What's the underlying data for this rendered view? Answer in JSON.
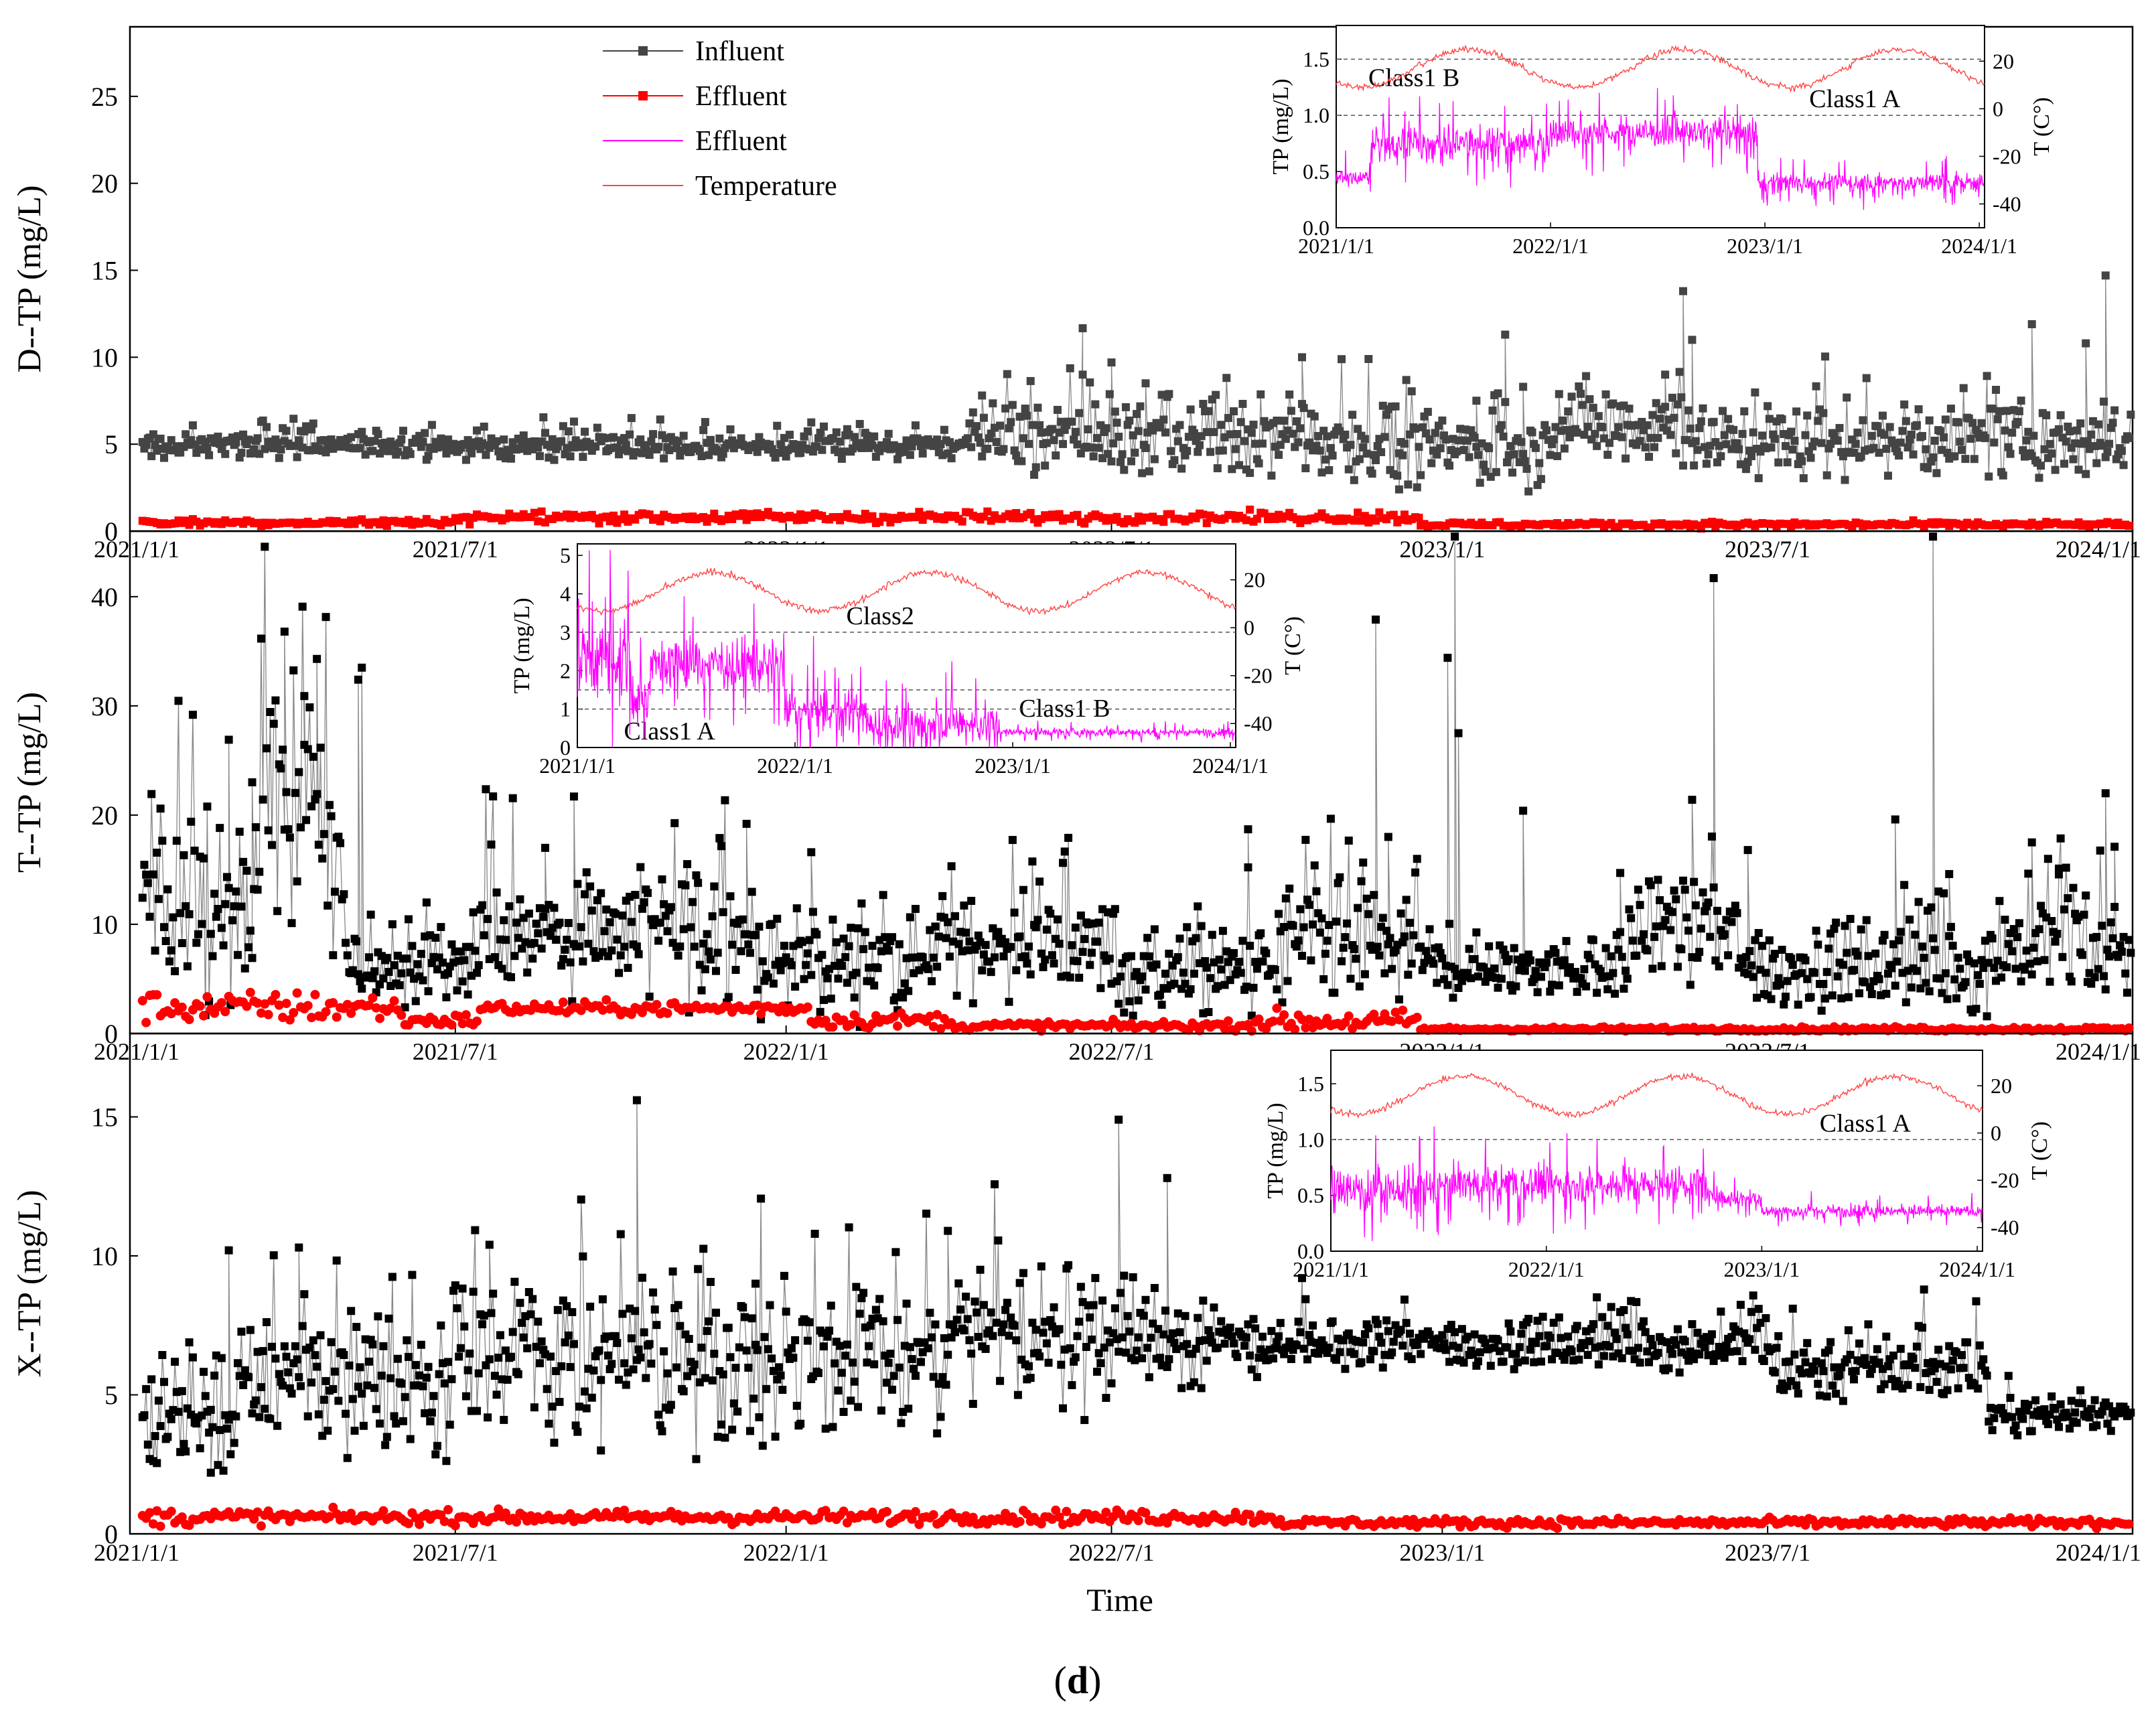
{
  "figure_label_open": "(",
  "figure_label": "d",
  "figure_label_close": ")",
  "colors": {
    "influent": "#444444",
    "influent_black": "#000000",
    "effluent": "#ff0000",
    "inset_tp": "#ff00ff",
    "temperature": "#ff4444",
    "dash": "#555555"
  },
  "chart_data": [
    {
      "id": "D",
      "type": "scatter",
      "title": "",
      "ylabel": "D--TP (mg/L)",
      "xlabel": "",
      "ylim": [
        0,
        29
      ],
      "yticks": [
        0,
        5,
        10,
        15,
        20,
        25
      ],
      "xrange": [
        "2021-01-01",
        "2024-01-20"
      ],
      "xtick_labels": [
        "2021/1/1",
        "2021/7/1",
        "2022/1/1",
        "2022/7/1",
        "2023/1/1",
        "2023/7/1",
        "2024/1/1"
      ],
      "legend": {
        "entries": [
          "Influent",
          "Effluent",
          "Effluent",
          "Temperature"
        ],
        "placement": "top-left"
      },
      "series": [
        {
          "name": "Influent",
          "marker": "square",
          "segments": [
            {
              "from": "2021-01-08",
              "to": "2022-04-15",
              "level": 4.9,
              "noise": 0.35
            },
            {
              "from": "2022-04-15",
              "to": "2022-11-30",
              "level": 5.4,
              "noise": 1.1
            },
            {
              "from": "2022-11-30",
              "to": "2023-03-01",
              "level": 4.8,
              "noise": 1.0
            },
            {
              "from": "2023-03-01",
              "to": "2023-05-20",
              "level": 6.2,
              "noise": 1.2
            },
            {
              "from": "2023-05-20",
              "to": "2024-01-20",
              "level": 5.2,
              "noise": 1.0
            }
          ],
          "peaks": [
            [
              "2021-09-05",
              6.3
            ],
            [
              "2022-04-20",
              7.8
            ],
            [
              "2022-06-15",
              9.0
            ],
            [
              "2022-07-01",
              9.7
            ],
            [
              "2022-07-20",
              8.5
            ],
            [
              "2022-10-15",
              10.0
            ],
            [
              "2023-01-20",
              7.5
            ],
            [
              "2023-02-05",
              11.3
            ],
            [
              "2023-02-15",
              8.3
            ],
            [
              "2023-05-05",
              9.0
            ],
            [
              "2023-05-15",
              13.8
            ],
            [
              "2023-05-20",
              11.0
            ],
            [
              "2023-11-25",
              11.9
            ],
            [
              "2023-12-25",
              10.8
            ],
            [
              "2024-01-05",
              14.7
            ],
            [
              "2022-12-08",
              2.4
            ]
          ]
        },
        {
          "name": "Effluent",
          "marker": "square",
          "segments": [
            {
              "from": "2021-01-08",
              "to": "2021-07-01",
              "level": 0.5,
              "noise": 0.1
            },
            {
              "from": "2021-07-01",
              "to": "2022-12-20",
              "level": 0.8,
              "noise": 0.15
            },
            {
              "from": "2022-12-20",
              "to": "2024-01-20",
              "level": 0.38,
              "noise": 0.08
            }
          ]
        }
      ],
      "inset": {
        "ylabel_left": "TP (mg/L)",
        "ylabel_right": "T (C°)",
        "yleft": [
          0,
          1.8
        ],
        "yleft_ticks": [
          "0.0",
          "0.5",
          "1.0",
          "1.5"
        ],
        "yleft_tick_values": [
          0,
          0.5,
          1.0,
          1.5
        ],
        "yright": [
          -50,
          35
        ],
        "yright_ticks": [
          "20",
          "0",
          "-20",
          "-40"
        ],
        "yright_tick_values": [
          20,
          0,
          -20,
          -40
        ],
        "xtick_labels": [
          "2021/1/1",
          "2022/1/1",
          "2023/1/1",
          "2024/1/1"
        ],
        "x_end": "2024-01-10",
        "limits": [
          {
            "label": "Class1 B",
            "value": 1.5
          },
          {
            "label": "Class1 A",
            "value": 1.0
          }
        ],
        "tp_segments": [
          {
            "from": "2021-01-01",
            "to": "2021-03-01",
            "level": 0.45,
            "noise": 0.05
          },
          {
            "from": "2021-03-01",
            "to": "2021-12-31",
            "level": 0.75,
            "noise": 0.12
          },
          {
            "from": "2021-12-31",
            "to": "2022-12-20",
            "level": 0.85,
            "noise": 0.1
          },
          {
            "from": "2022-12-20",
            "to": "2024-01-10",
            "level": 0.4,
            "noise": 0.06
          }
        ],
        "temp_curve": {
          "mean": 17,
          "amplitude": 8,
          "peak_month": 7.5,
          "noise": 0.7
        }
      }
    },
    {
      "id": "T",
      "type": "scatter",
      "ylabel": "T--TP (mg/L)",
      "xlabel": "",
      "ylim": [
        0,
        46
      ],
      "yticks": [
        0,
        10,
        20,
        30,
        40
      ],
      "xrange": [
        "2021-01-01",
        "2024-01-20"
      ],
      "xtick_labels": [
        "2021/1/1",
        "2021/7/1",
        "2022/1/1",
        "2022/7/1",
        "2023/1/1",
        "2023/7/1",
        "2024/1/1"
      ],
      "series": [
        {
          "name": "Influent",
          "marker": "square",
          "segments": [
            {
              "from": "2021-01-08",
              "to": "2021-03-15",
              "level": 11,
              "noise": 5
            },
            {
              "from": "2021-03-15",
              "to": "2021-05-01",
              "level": 20,
              "noise": 5
            },
            {
              "from": "2021-05-01",
              "to": "2021-07-15",
              "level": 6,
              "noise": 1.6
            },
            {
              "from": "2021-07-15",
              "to": "2021-12-15",
              "level": 9.5,
              "noise": 3
            },
            {
              "from": "2021-12-15",
              "to": "2022-03-15",
              "level": 6.5,
              "noise": 2
            },
            {
              "from": "2022-03-15",
              "to": "2022-07-01",
              "level": 8,
              "noise": 2
            },
            {
              "from": "2022-07-01",
              "to": "2022-10-01",
              "level": 5.5,
              "noise": 1.8
            },
            {
              "from": "2022-10-01",
              "to": "2022-12-20",
              "level": 8,
              "noise": 3
            },
            {
              "from": "2022-12-20",
              "to": "2023-04-15",
              "level": 6,
              "noise": 1.3
            },
            {
              "from": "2023-04-15",
              "to": "2023-06-15",
              "level": 9,
              "noise": 2.5
            },
            {
              "from": "2023-06-15",
              "to": "2023-11-01",
              "level": 6,
              "noise": 2
            },
            {
              "from": "2023-11-01",
              "to": "2024-01-20",
              "level": 8,
              "noise": 2.5
            }
          ],
          "peaks": [
            [
              "2021-02-25",
              26.9
            ],
            [
              "2021-03-10",
              23
            ],
            [
              "2021-03-28",
              36.8
            ],
            [
              "2021-04-08",
              30.9
            ],
            [
              "2021-04-15",
              34.3
            ],
            [
              "2021-05-08",
              32.4
            ],
            [
              "2021-05-10",
              33.5
            ],
            [
              "2021-09-05",
              21.7
            ],
            [
              "2021-08-20",
              17
            ],
            [
              "2021-11-25",
              17.9
            ],
            [
              "2021-12-10",
              19.2
            ],
            [
              "2022-01-15",
              16.6
            ],
            [
              "2022-09-15",
              18.7
            ],
            [
              "2022-11-25",
              37.9
            ],
            [
              "2022-12-02",
              18
            ],
            [
              "2023-01-08",
              45.5
            ],
            [
              "2023-01-04",
              34.4
            ],
            [
              "2023-01-10",
              27.5
            ],
            [
              "2023-02-15",
              20.4
            ],
            [
              "2023-04-10",
              14.7
            ],
            [
              "2023-05-20",
              21.4
            ],
            [
              "2023-06-01",
              41.7
            ],
            [
              "2023-06-20",
              16.8
            ],
            [
              "2023-09-10",
              19.6
            ],
            [
              "2023-10-01",
              45.5
            ],
            [
              "2023-10-10",
              14.6
            ],
            [
              "2023-11-25",
              17.5
            ],
            [
              "2023-12-10",
              15.1
            ],
            [
              "2024-01-05",
              22
            ],
            [
              "2024-01-10",
              17.1
            ]
          ]
        },
        {
          "name": "Effluent",
          "marker": "circle",
          "segments": [
            {
              "from": "2021-01-08",
              "to": "2021-06-01",
              "level": 2.4,
              "noise": 0.7
            },
            {
              "from": "2021-06-01",
              "to": "2021-07-15",
              "level": 1.2,
              "noise": 0.3
            },
            {
              "from": "2021-07-15",
              "to": "2022-01-15",
              "level": 2.3,
              "noise": 0.3
            },
            {
              "from": "2022-01-15",
              "to": "2022-04-01",
              "level": 1.2,
              "noise": 0.35
            },
            {
              "from": "2022-04-01",
              "to": "2022-09-15",
              "level": 0.7,
              "noise": 0.2
            },
            {
              "from": "2022-09-15",
              "to": "2022-12-20",
              "level": 1.1,
              "noise": 0.5
            },
            {
              "from": "2022-12-20",
              "to": "2024-01-20",
              "level": 0.4,
              "noise": 0.1
            }
          ]
        }
      ],
      "inset": {
        "ylabel_left": "TP (mg/L)",
        "ylabel_right": "T (C°)",
        "yleft": [
          0,
          5.3
        ],
        "yleft_ticks": [
          "0",
          "1",
          "2",
          "3",
          "4",
          "5"
        ],
        "yleft_tick_values": [
          0,
          1,
          2,
          3,
          4,
          5
        ],
        "yright": [
          -50,
          35
        ],
        "yright_ticks": [
          "20",
          "0",
          "-20",
          "-40"
        ],
        "yright_tick_values": [
          20,
          0,
          -20,
          -40
        ],
        "xtick_labels": [
          "2021/1/1",
          "2022/1/1",
          "2023/1/1",
          "2024/1/1"
        ],
        "x_end": "2024-01-10",
        "limits": [
          {
            "label": "Class2",
            "value": 3.0
          },
          {
            "label": "Class1 B",
            "value": 1.5
          },
          {
            "label": "Class1 A",
            "value": 1.0
          }
        ],
        "tp_segments": [
          {
            "from": "2021-01-01",
            "to": "2021-04-01",
            "level": 2.3,
            "noise": 0.9
          },
          {
            "from": "2021-04-01",
            "to": "2021-05-01",
            "level": 1.3,
            "noise": 0.5
          },
          {
            "from": "2021-05-01",
            "to": "2021-12-15",
            "level": 2.2,
            "noise": 0.5
          },
          {
            "from": "2021-12-15",
            "to": "2022-05-01",
            "level": 0.9,
            "noise": 0.4
          },
          {
            "from": "2022-05-01",
            "to": "2022-12-10",
            "level": 0.6,
            "noise": 0.4
          },
          {
            "from": "2022-12-10",
            "to": "2024-01-10",
            "level": 0.4,
            "noise": 0.07
          }
        ],
        "temp_curve": {
          "mean": 15,
          "amplitude": 8,
          "peak_month": 7.5,
          "noise": 0.7
        }
      }
    },
    {
      "id": "X",
      "type": "scatter",
      "ylabel": "X--TP (mg/L)",
      "xlabel": "Time",
      "ylim": [
        0,
        18
      ],
      "yticks": [
        0,
        5,
        10,
        15
      ],
      "xrange": [
        "2021-01-01",
        "2024-01-20"
      ],
      "xtick_labels": [
        "2021/1/1",
        "2021/7/1",
        "2022/1/1",
        "2022/7/1",
        "2023/1/1",
        "2023/7/1",
        "2024/1/1"
      ],
      "series": [
        {
          "name": "Influent",
          "marker": "square",
          "segments": [
            {
              "from": "2021-01-08",
              "to": "2021-03-01",
              "level": 4,
              "noise": 1.2
            },
            {
              "from": "2021-03-01",
              "to": "2021-07-01",
              "level": 5.5,
              "noise": 1.3
            },
            {
              "from": "2021-07-01",
              "to": "2022-04-01",
              "level": 6.3,
              "noise": 1.4
            },
            {
              "from": "2022-04-01",
              "to": "2022-09-01",
              "level": 7,
              "noise": 1.0
            },
            {
              "from": "2022-09-01",
              "to": "2023-07-01",
              "level": 6.8,
              "noise": 0.45
            },
            {
              "from": "2023-07-01",
              "to": "2023-11-01",
              "level": 6,
              "noise": 0.6
            },
            {
              "from": "2023-11-01",
              "to": "2024-01-20",
              "level": 4.3,
              "noise": 0.3
            }
          ],
          "peaks": [
            [
              "2021-02-25",
              10.2
            ],
            [
              "2021-04-05",
              10.3
            ],
            [
              "2021-07-20",
              10.4
            ],
            [
              "2021-10-10",
              15.6
            ],
            [
              "2021-12-15",
              9.0
            ],
            [
              "2022-04-01",
              10.9
            ],
            [
              "2022-07-05",
              14.9
            ],
            [
              "2022-08-01",
              12.8
            ],
            [
              "2021-09-20",
              3.0
            ],
            [
              "2021-02-15",
              2.2
            ]
          ]
        },
        {
          "name": "Effluent",
          "marker": "circle",
          "segments": [
            {
              "from": "2021-01-08",
              "to": "2021-03-15",
              "level": 0.6,
              "noise": 0.15
            },
            {
              "from": "2021-03-15",
              "to": "2022-10-01",
              "level": 0.6,
              "noise": 0.12
            },
            {
              "from": "2022-10-01",
              "to": "2024-01-20",
              "level": 0.4,
              "noise": 0.08
            }
          ]
        }
      ],
      "inset": {
        "ylabel_left": "TP (mg/L)",
        "ylabel_right": "T (C°)",
        "yleft": [
          0,
          1.8
        ],
        "yleft_ticks": [
          "0.0",
          "0.5",
          "1.0",
          "1.5"
        ],
        "yleft_tick_values": [
          0,
          0.5,
          1.0,
          1.5
        ],
        "yright": [
          -50,
          35
        ],
        "yright_ticks": [
          "20",
          "0",
          "-20",
          "-40"
        ],
        "yright_tick_values": [
          20,
          0,
          -20,
          -40
        ],
        "xtick_labels": [
          "2021/1/1",
          "2022/1/1",
          "2023/1/1",
          "2024/1/1"
        ],
        "x_end": "2024-01-10",
        "limits": [
          {
            "label": "Class1 A",
            "value": 1.0
          }
        ],
        "tp_segments": [
          {
            "from": "2021-01-01",
            "to": "2021-07-01",
            "level": 0.55,
            "noise": 0.14
          },
          {
            "from": "2021-07-01",
            "to": "2022-10-01",
            "level": 0.6,
            "noise": 0.12
          },
          {
            "from": "2022-10-01",
            "to": "2023-01-01",
            "level": 0.48,
            "noise": 0.07
          },
          {
            "from": "2023-01-01",
            "to": "2024-01-10",
            "level": 0.36,
            "noise": 0.04
          }
        ],
        "temp_curve": {
          "mean": 16,
          "amplitude": 8,
          "peak_month": 7.5,
          "noise": 0.7
        }
      }
    }
  ]
}
